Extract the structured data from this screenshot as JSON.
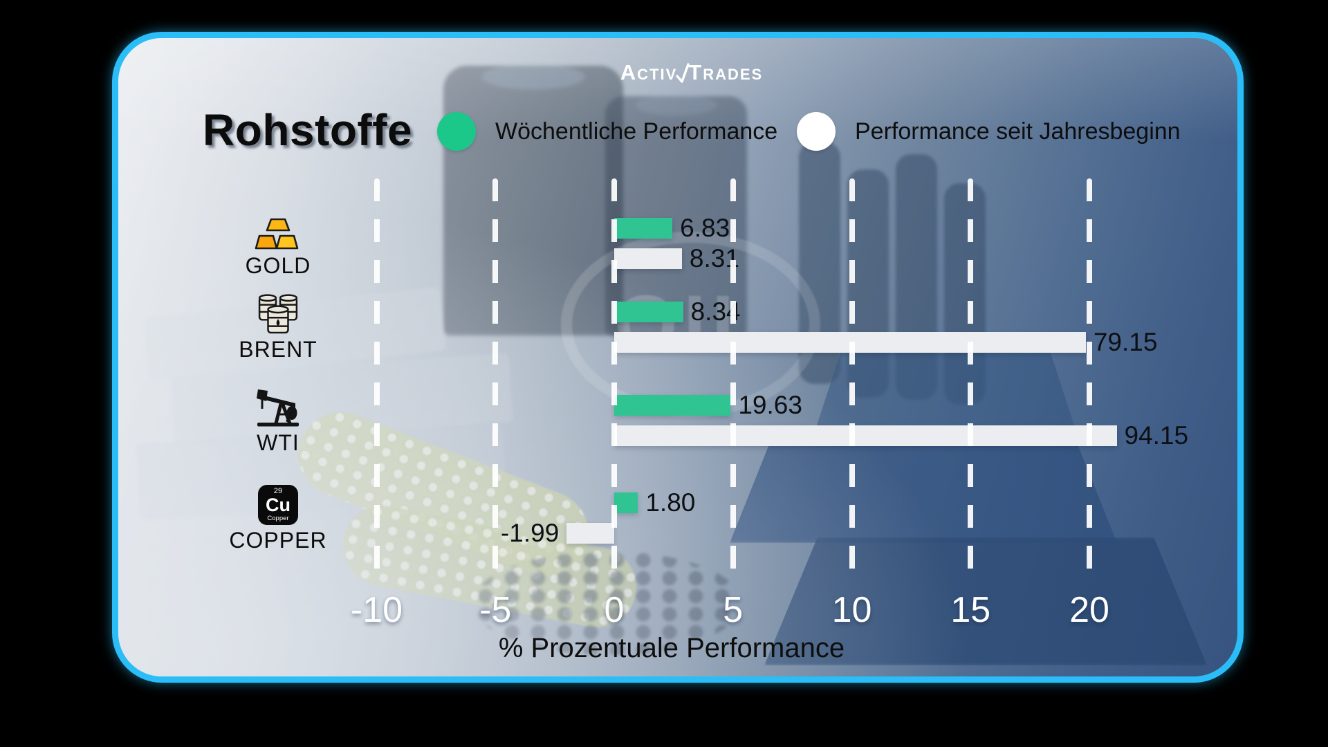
{
  "brand": {
    "left": "Activ",
    "right": "Trades"
  },
  "colors": {
    "card_border": "#2abdf8"
  },
  "chart_data": {
    "type": "bar",
    "orientation": "horizontal",
    "title": "Rohstoffe",
    "xlabel": "% Prozentuale Performance",
    "x_ticks": [
      -10,
      -5,
      0,
      5,
      10,
      15,
      20
    ],
    "xlim": [
      -12.6,
      25.6
    ],
    "grid": "vertical-dashed-white",
    "legend_position": "top",
    "watermark": "OIL",
    "categories": [
      "GOLD",
      "BRENT",
      "WTI",
      "COPPER"
    ],
    "series": [
      {
        "name": "Wöchentliche Performance",
        "legend_color": "#1cc78a",
        "bar_color": "#30c492",
        "values": [
          6.83,
          8.34,
          19.63,
          1.8
        ],
        "value_labels": [
          "6.83",
          "8.34",
          "19.63",
          "1.80"
        ]
      },
      {
        "name": "Performance seit Jahresbeginn",
        "legend_color": "#ffffff",
        "bar_color": "#ebedf0",
        "values": [
          8.31,
          79.15,
          94.15,
          -1.99
        ],
        "value_labels": [
          "8.31",
          "79.15",
          "94.15",
          "-1.99"
        ]
      }
    ],
    "bar_drawn_axis_units": {
      "weekly": [
        2.45,
        2.9,
        4.9,
        1.0
      ],
      "ytd": [
        2.85,
        19.85,
        21.15,
        -2.0
      ]
    },
    "copper_element": {
      "number": "29",
      "symbol": "Cu",
      "name": "Copper"
    }
  }
}
